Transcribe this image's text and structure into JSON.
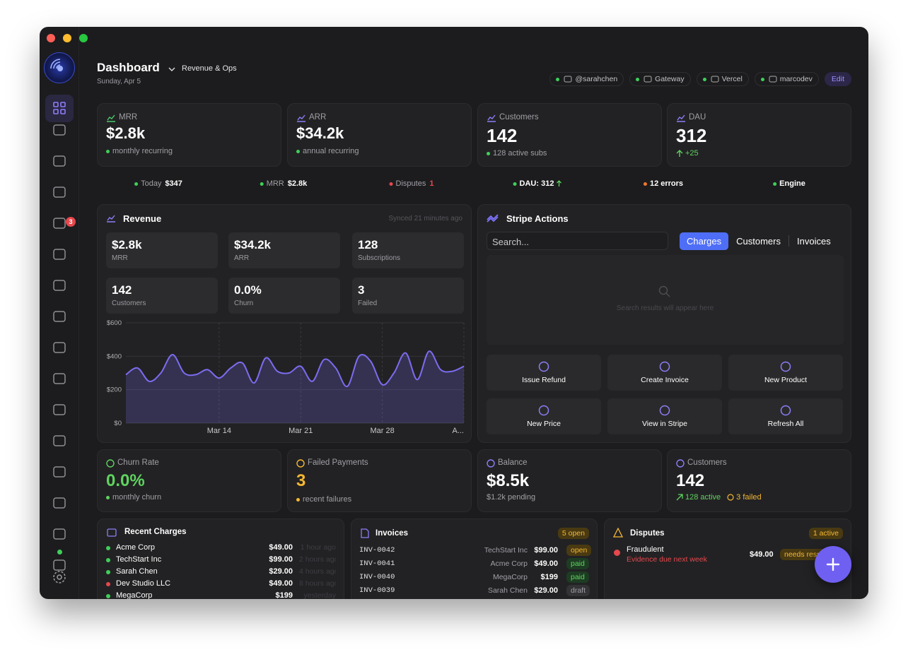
{
  "window": {
    "sidebar_badge": "3"
  },
  "header": {
    "title": "Dashboard",
    "view": "Revenue & Ops",
    "date": "Sunday, Apr 5",
    "chips": [
      "@sarahchen",
      "Gateway",
      "Vercel",
      "marcodev"
    ],
    "edit": "Edit"
  },
  "stats": [
    {
      "label": "MRR",
      "value": "$2.8k",
      "sub": "monthly recurring"
    },
    {
      "label": "ARR",
      "value": "$34.2k",
      "sub": "annual recurring"
    },
    {
      "label": "Customers",
      "value": "142",
      "sub": "128 active subs"
    },
    {
      "label": "DAU",
      "value": "312",
      "sub": "+25"
    }
  ],
  "ticker": [
    {
      "label": "Today",
      "value": "$347"
    },
    {
      "label": "MRR",
      "value": "$2.8k"
    },
    {
      "label": "Disputes",
      "value": "1"
    },
    {
      "label": "DAU: 312"
    },
    {
      "label": "12 errors"
    },
    {
      "label": "Engine"
    }
  ],
  "revenue": {
    "title": "Revenue",
    "synced": "Synced 21 minutes ago",
    "metrics": [
      {
        "value": "$2.8k",
        "label": "MRR"
      },
      {
        "value": "$34.2k",
        "label": "ARR"
      },
      {
        "value": "128",
        "label": "Subscriptions"
      },
      {
        "value": "142",
        "label": "Customers"
      },
      {
        "value": "0.0%",
        "label": "Churn"
      },
      {
        "value": "3",
        "label": "Failed"
      }
    ],
    "chart": {
      "type": "area",
      "color": "#7c6cf0",
      "categories": [
        null,
        null,
        null,
        null,
        null,
        null,
        null,
        null,
        "Mar 14",
        null,
        null,
        null,
        null,
        null,
        null,
        "Mar 21",
        null,
        null,
        null,
        null,
        null,
        null,
        "Mar 28",
        null,
        null,
        null,
        null,
        null,
        null,
        "A..."
      ],
      "values": [
        290,
        330,
        250,
        300,
        410,
        300,
        290,
        320,
        270,
        330,
        360,
        240,
        390,
        310,
        300,
        340,
        250,
        380,
        330,
        220,
        400,
        370,
        230,
        300,
        420,
        260,
        430,
        320,
        310,
        340
      ],
      "ylim": [
        0,
        600
      ],
      "yticks": [
        {
          "value": 0,
          "label": "$0"
        },
        {
          "value": 200,
          "label": "$200"
        },
        {
          "value": 400,
          "label": "$400"
        },
        {
          "value": 600,
          "label": "$600"
        }
      ],
      "grid": true
    }
  },
  "stripe": {
    "title": "Stripe Actions",
    "search_placeholder": "Search...",
    "tabs": [
      "Charges",
      "Customers",
      "Invoices"
    ],
    "empty": "Search results will appear here",
    "actions": [
      "Issue Refund",
      "Create Invoice",
      "New Product",
      "New Price",
      "View in Stripe",
      "Refresh All"
    ]
  },
  "summary": [
    {
      "label": "Churn Rate",
      "value": "0.0%",
      "sub": "monthly churn"
    },
    {
      "label": "Failed Payments",
      "value": "3",
      "sub": "recent failures"
    },
    {
      "label": "Balance",
      "value": "$8.5k",
      "sub": "$1.2k pending"
    },
    {
      "label": "Customers",
      "value": "142",
      "sub": "128 active",
      "sub2": "3 failed"
    }
  ],
  "charges": {
    "title": "Recent Charges",
    "rows": [
      [
        "Acme Corp",
        "$49.00",
        "1 hour ago"
      ],
      [
        "TechStart Inc",
        "$99.00",
        "2 hours ago"
      ],
      [
        "Sarah Chen",
        "$29.00",
        "4 hours ago"
      ],
      [
        "Dev Studio LLC",
        "$49.00",
        "8 hours ago"
      ],
      [
        "MegaCorp",
        "$199",
        "yesterday"
      ]
    ]
  },
  "invoices": {
    "title": "Invoices",
    "badge": "5 open",
    "rows": [
      [
        "INV-0042",
        "TechStart Inc",
        "$99.00",
        "open"
      ],
      [
        "INV-0041",
        "Acme Corp",
        "$49.00",
        "paid"
      ],
      [
        "INV-0040",
        "MegaCorp",
        "$199",
        "paid"
      ],
      [
        "INV-0039",
        "Sarah Chen",
        "$29.00",
        "draft"
      ]
    ]
  },
  "disputes": {
    "title": "Disputes",
    "badge": "1 active",
    "rows": [
      {
        "reason": "Fraudulent",
        "note": "Evidence due next week",
        "amount": "$49.00",
        "status": "needs response"
      }
    ]
  }
}
